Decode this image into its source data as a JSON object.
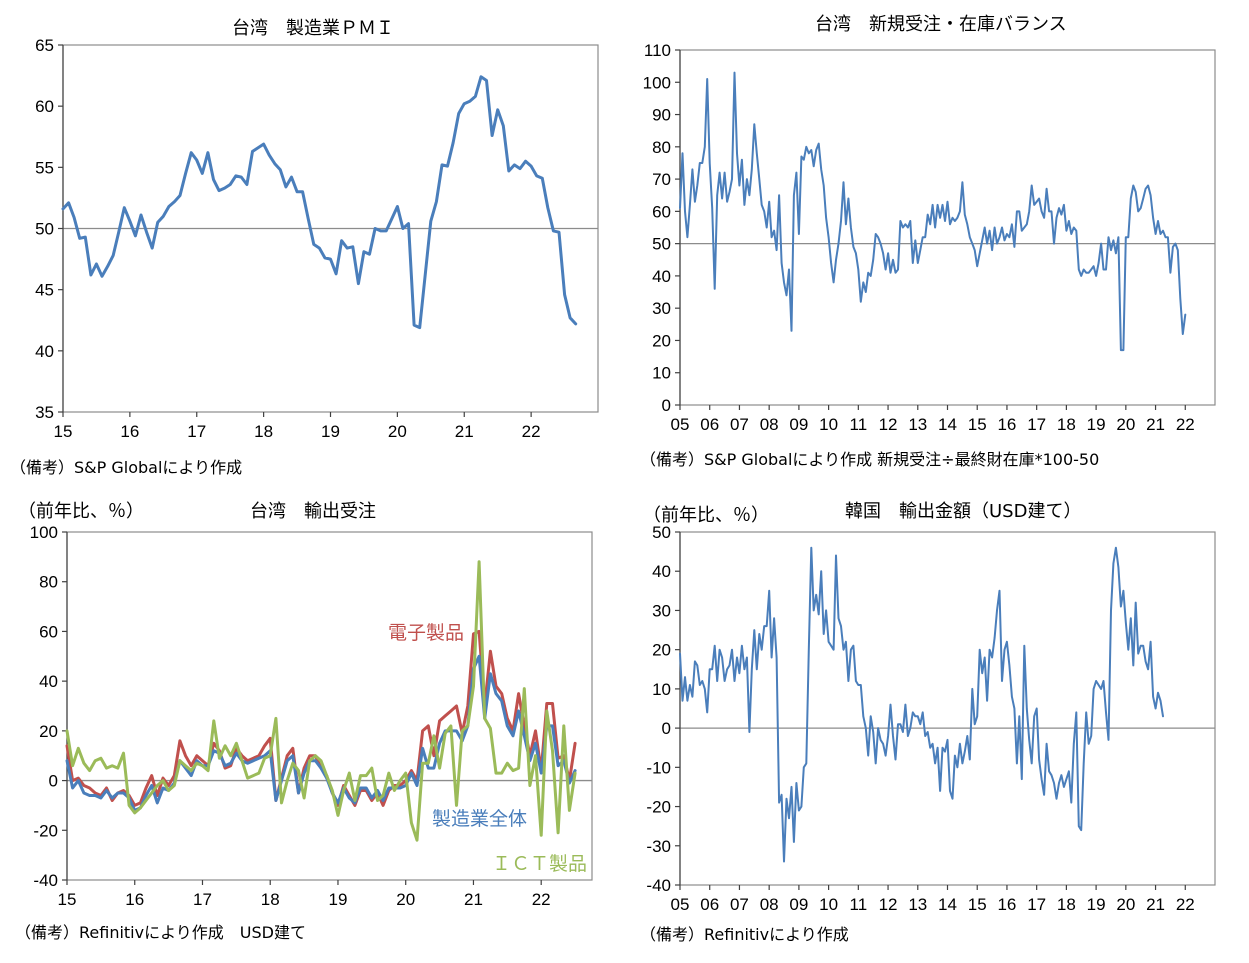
{
  "chart_data": [
    {
      "id": "pmi",
      "type": "line",
      "title": "台湾　製造業ＰＭＩ",
      "note": "（備考）S&P Globalにより作成",
      "ylim": [
        35,
        65
      ],
      "yticks": [
        35,
        40,
        45,
        50,
        55,
        60,
        65
      ],
      "xticks": [
        "15",
        "16",
        "17",
        "18",
        "19",
        "20",
        "21",
        "22"
      ],
      "x_range": [
        2015.0,
        2023.0
      ],
      "reference_line": 50,
      "grid": false,
      "series": [
        {
          "name": "",
          "color": "#4a7ebb",
          "x_start": 2015.0,
          "x_step": 0.0833333,
          "values": [
            51.6,
            52.1,
            50.9,
            49.2,
            49.3,
            46.2,
            47.1,
            46.1,
            46.9,
            47.8,
            49.7,
            51.7,
            50.6,
            49.4,
            51.1,
            49.7,
            48.4,
            50.5,
            51.0,
            51.8,
            52.2,
            52.7,
            54.5,
            56.2,
            55.6,
            54.5,
            56.2,
            54.0,
            53.1,
            53.3,
            53.6,
            54.3,
            54.2,
            53.6,
            56.3,
            56.6,
            56.9,
            56.0,
            55.3,
            54.8,
            53.4,
            54.2,
            53.0,
            53.0,
            50.8,
            48.7,
            48.4,
            47.6,
            47.5,
            46.3,
            49.0,
            48.4,
            48.5,
            45.5,
            48.1,
            47.9,
            50.0,
            49.8,
            49.8,
            50.8,
            51.8,
            50.0,
            50.4,
            42.1,
            41.9,
            46.2,
            50.6,
            52.2,
            55.2,
            55.1,
            57.0,
            59.4,
            60.2,
            60.4,
            60.8,
            62.4,
            62.1,
            57.6,
            59.7,
            58.4,
            54.7,
            55.2,
            54.9,
            55.5,
            55.1,
            54.3,
            54.1,
            51.7,
            49.8,
            49.7,
            44.6,
            42.7,
            42.2
          ]
        }
      ]
    },
    {
      "id": "balance",
      "type": "line",
      "title": "台湾　新規受注・在庫バランス",
      "note": "（備考）S&P Globalにより作成 新規受注÷最終財在庫*100-50",
      "ylim": [
        0,
        110
      ],
      "yticks": [
        0,
        10,
        20,
        30,
        40,
        50,
        60,
        70,
        80,
        90,
        100,
        110
      ],
      "xticks": [
        "05",
        "06",
        "07",
        "08",
        "09",
        "10",
        "11",
        "12",
        "13",
        "14",
        "15",
        "16",
        "17",
        "18",
        "19",
        "20",
        "21",
        "22"
      ],
      "x_range": [
        2005.0,
        2023.0
      ],
      "reference_line": 50,
      "grid": false,
      "series": [
        {
          "name": "",
          "color": "#4a7ebb",
          "x_start": 2005.0,
          "x_step": 0.0833333,
          "values": [
            61,
            78,
            60,
            52,
            62,
            73,
            63,
            68,
            75,
            75,
            80,
            101,
            75,
            61,
            36,
            65,
            72,
            64,
            72,
            63,
            66,
            70,
            103,
            78,
            68,
            76,
            62,
            70,
            65,
            73,
            87,
            78,
            70,
            62,
            60,
            55,
            63,
            52,
            54,
            48,
            65,
            44,
            38,
            34,
            42,
            23,
            65,
            72,
            53,
            77,
            76,
            80,
            78,
            79,
            74,
            79,
            81,
            73,
            68,
            58,
            52,
            44,
            38,
            45,
            50,
            57,
            69,
            56,
            64,
            55,
            49,
            47,
            42,
            32,
            38,
            35,
            41,
            40,
            45,
            53,
            52,
            50,
            47,
            42,
            47,
            41,
            45,
            41,
            42,
            57,
            55,
            56,
            55,
            57,
            44,
            51,
            44,
            48,
            52,
            52,
            59,
            56,
            62,
            55,
            62,
            58,
            62,
            57,
            63,
            56,
            58,
            57,
            58,
            60,
            69,
            59,
            56,
            52,
            50,
            48,
            43,
            47,
            51,
            55,
            50,
            54,
            48,
            55,
            50,
            52,
            55,
            51,
            53,
            52,
            56,
            49,
            60,
            60,
            54,
            55,
            56,
            60,
            68,
            62,
            63,
            64,
            60,
            58,
            67,
            60,
            60,
            50,
            58,
            61,
            59,
            62,
            54,
            57,
            53,
            55,
            54,
            42,
            40,
            42,
            41,
            41,
            42,
            43,
            40,
            44,
            50,
            42,
            42,
            52,
            48,
            51,
            47,
            52,
            17,
            17,
            52,
            52,
            64,
            68,
            66,
            60,
            61,
            64,
            67,
            68,
            65,
            58,
            53,
            57,
            53,
            54,
            52,
            52,
            41,
            49,
            50,
            48,
            33,
            22,
            28
          ]
        }
      ]
    },
    {
      "id": "orders",
      "type": "line",
      "title": "台湾　輸出受注",
      "unit": "（前年比、％）",
      "note": "（備考）Refinitivにより作成　USD建て",
      "ylim": [
        -40,
        100
      ],
      "yticks": [
        -40,
        -20,
        0,
        20,
        40,
        60,
        80,
        100
      ],
      "xticks": [
        "15",
        "16",
        "17",
        "18",
        "19",
        "20",
        "21",
        "22"
      ],
      "x_range": [
        2015.0,
        2022.75
      ],
      "reference_line": 0,
      "grid": false,
      "series": [
        {
          "name": "電子製品",
          "color": "#c0504d",
          "x_start": 2015.0,
          "x_step": 0.0833333,
          "values": [
            14,
            0,
            1,
            -2,
            -3,
            -5,
            -6,
            -3,
            -8,
            -5,
            -4,
            -6,
            -10,
            -9,
            -3,
            2,
            -6,
            1,
            -2,
            2,
            16,
            10,
            6,
            10,
            8,
            6,
            15,
            12,
            5,
            6,
            13,
            10,
            8,
            9,
            10,
            14,
            17,
            -8,
            1,
            10,
            13,
            -5,
            5,
            10,
            10,
            5,
            2,
            -5,
            -10,
            -2,
            -6,
            -10,
            -4,
            -4,
            -8,
            -5,
            -10,
            -4,
            -2,
            -2,
            0,
            4,
            0,
            20,
            22,
            10,
            24,
            26,
            28,
            30,
            19,
            30,
            59,
            60,
            30,
            52,
            38,
            35,
            25,
            20,
            35,
            22,
            10,
            20,
            4,
            31,
            31,
            9,
            10,
            0,
            15
          ]
        },
        {
          "name": "製造業全体",
          "color": "#4a7ebb",
          "x_start": 2015.0,
          "x_step": 0.0833333,
          "values": [
            8,
            -3,
            0,
            -5,
            -6,
            -6,
            -7,
            -4,
            -7,
            -5,
            -5,
            -7,
            -12,
            -11,
            -6,
            -2,
            -9,
            -3,
            -4,
            -1,
            8,
            5,
            2,
            8,
            6,
            6,
            12,
            11,
            6,
            7,
            11,
            8,
            7,
            8,
            9,
            10,
            12,
            -8,
            0,
            8,
            10,
            -5,
            3,
            8,
            8,
            5,
            1,
            -5,
            -9,
            -3,
            -7,
            -9,
            -3,
            -3,
            -7,
            -4,
            -8,
            -3,
            -3,
            -3,
            -2,
            3,
            -2,
            13,
            5,
            5,
            15,
            20,
            20,
            20,
            16,
            22,
            45,
            50,
            25,
            43,
            35,
            32,
            22,
            18,
            28,
            18,
            8,
            15,
            3,
            22,
            22,
            6,
            8,
            -1,
            4
          ]
        },
        {
          "name": "ＩＣＴ製品",
          "color": "#9bbb59",
          "x_start": 2015.0,
          "x_step": 0.0833333,
          "values": [
            20,
            6,
            13,
            7,
            4,
            8,
            9,
            5,
            6,
            5,
            11,
            -10,
            -13,
            -11,
            -8,
            -5,
            -2,
            0,
            -4,
            -2,
            8,
            6,
            4,
            7,
            6,
            4,
            24,
            9,
            14,
            10,
            15,
            8,
            1,
            2,
            3,
            9,
            10,
            25,
            -9,
            0,
            7,
            4,
            -7,
            8,
            10,
            8,
            2,
            -4,
            -14,
            -4,
            3,
            -8,
            2,
            2,
            5,
            -8,
            -6,
            3,
            -4,
            0,
            3,
            -17,
            -24,
            7,
            7,
            18,
            5,
            19,
            22,
            -10,
            20,
            22,
            38,
            88,
            25,
            21,
            3,
            3,
            7,
            4,
            5,
            37,
            -2,
            10,
            -22,
            28,
            12,
            -21,
            22,
            -12,
            3
          ]
        }
      ]
    },
    {
      "id": "korea",
      "type": "line",
      "title": "韓国　輸出金額（USD建て）",
      "unit": "（前年比、％）",
      "note": "（備考）Refinitivにより作成",
      "ylim": [
        -40,
        50
      ],
      "yticks": [
        -40,
        -30,
        -20,
        -10,
        0,
        10,
        20,
        30,
        40,
        50
      ],
      "xticks": [
        "05",
        "06",
        "07",
        "08",
        "09",
        "10",
        "11",
        "12",
        "13",
        "14",
        "15",
        "16",
        "17",
        "18",
        "19",
        "20",
        "21",
        "22"
      ],
      "x_range": [
        2005.0,
        2023.0
      ],
      "reference_line": 0,
      "grid": false,
      "series": [
        {
          "name": "",
          "color": "#4a7ebb",
          "x_start": 2005.0,
          "x_step": 0.0833333,
          "values": [
            19,
            7,
            13,
            7,
            11,
            8,
            17,
            16,
            11,
            12,
            10,
            4,
            15,
            15,
            21,
            12,
            20,
            18,
            12,
            15,
            16,
            20,
            12,
            18,
            14,
            21,
            15,
            18,
            -1,
            15,
            25,
            15,
            24,
            20,
            26,
            26,
            35,
            18,
            28,
            18,
            -19,
            -17,
            -34,
            -18,
            -23,
            -15,
            -29,
            -14,
            -21,
            -20,
            -10,
            -9,
            20,
            46,
            30,
            34,
            29,
            40,
            24,
            30,
            22,
            21,
            20,
            44,
            28,
            26,
            20,
            22,
            12,
            20,
            21,
            12,
            11,
            11,
            3,
            0,
            -7,
            3,
            -1,
            -9,
            0,
            -3,
            -4,
            -7,
            -2,
            6,
            -2,
            -8,
            1,
            1,
            -1,
            6,
            -2,
            0,
            4,
            3,
            3,
            1,
            4,
            -2,
            -1,
            -5,
            -4,
            -9,
            -5,
            -16,
            -5,
            -6,
            -3,
            -16,
            -18,
            -7,
            -10,
            -4,
            -9,
            -6,
            -2,
            -8,
            10,
            1,
            3,
            20,
            14,
            18,
            7,
            20,
            18,
            23,
            30,
            35,
            12,
            20,
            22,
            16,
            8,
            5,
            -9,
            3,
            -13,
            21,
            5,
            -3,
            -9,
            3,
            5,
            -8,
            -13,
            -17,
            -4,
            -11,
            -12,
            -14,
            -18,
            -14,
            -12,
            -15,
            -13,
            -11,
            -19,
            -4,
            4,
            -25,
            -26,
            -9,
            4,
            -4,
            -2,
            10,
            12,
            11,
            10,
            12,
            4,
            -3,
            30,
            42,
            46,
            41,
            31,
            35,
            27,
            20,
            28,
            16,
            32,
            19,
            21,
            21,
            17,
            15,
            22,
            8,
            5,
            9,
            7,
            3
          ]
        }
      ]
    }
  ]
}
